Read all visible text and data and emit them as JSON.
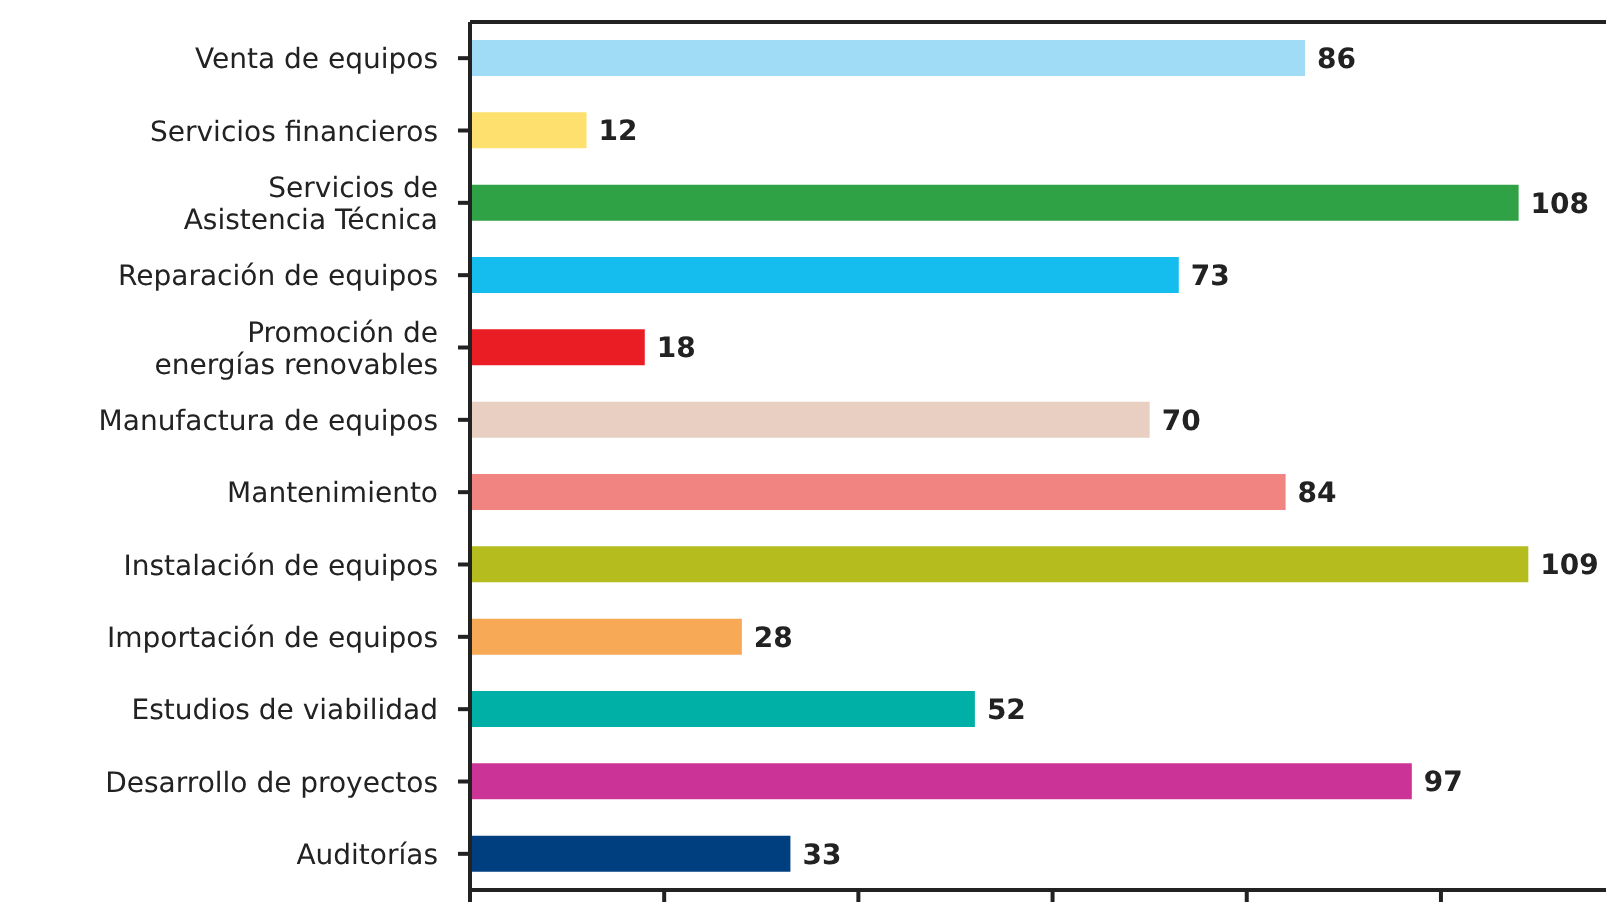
{
  "chart_data": {
    "type": "bar",
    "orientation": "horizontal",
    "categories": [
      "Venta de equipos",
      "Servicios financieros",
      "Servicios de Asistencia Técnica",
      "Reparación de equipos",
      "Promoción de energías renovables",
      "Manufactura de equipos",
      "Mantenimiento",
      "Instalación de equipos",
      "Importación de equipos",
      "Estudios de viabilidad",
      "Desarrollo de proyectos",
      "Auditorías"
    ],
    "values": [
      86,
      12,
      108,
      73,
      18,
      70,
      84,
      109,
      28,
      52,
      97,
      33
    ],
    "colors": [
      "#a0dcf6",
      "#fde06e",
      "#2ea245",
      "#14bdee",
      "#ea1c24",
      "#e8cfc2",
      "#f18480",
      "#b5bd1e",
      "#f8a955",
      "#00afa6",
      "#cc3396",
      "#003f7f"
    ],
    "xlim": [
      0,
      117
    ],
    "xticks": [
      {
        "value": 0,
        "label": null
      },
      {
        "value": 20,
        "label": null
      },
      {
        "value": 40,
        "label": null
      },
      {
        "value": 60,
        "label": null
      },
      {
        "value": 80,
        "label": null
      },
      {
        "value": 100,
        "label": null
      }
    ],
    "tick_labels": "y",
    "data_labels": true,
    "grid": false,
    "legend": false
  }
}
